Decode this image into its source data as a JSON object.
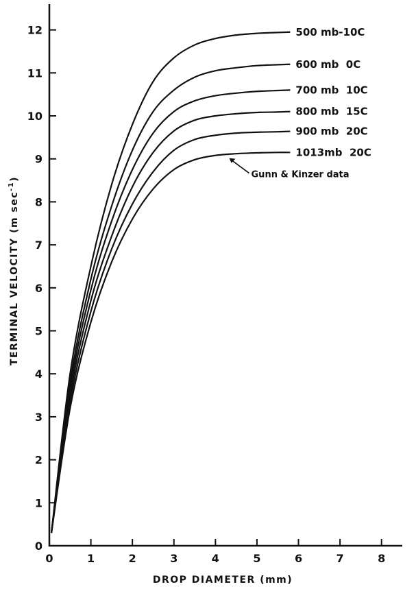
{
  "chart_data": {
    "type": "line",
    "xlabel": "DROP DIAMETER (mm)",
    "ylabel": "TERMINAL VELOCITY (m sec",
    "ylabel_superscript": "-1",
    "ylabel_suffix": ")",
    "xlim": [
      0,
      8.5
    ],
    "ylim": [
      0,
      12.6
    ],
    "xticks": [
      0,
      1,
      2,
      3,
      4,
      5,
      6,
      7,
      8
    ],
    "yticks": [
      0,
      1,
      2,
      3,
      4,
      5,
      6,
      7,
      8,
      9,
      10,
      11,
      12
    ],
    "grid": false,
    "colors": {
      "line": "#111111",
      "axis": "#111111"
    },
    "series": [
      {
        "name": "500 mb-10C",
        "x": [
          0.05,
          0.5,
          1.0,
          1.5,
          2.0,
          2.5,
          3.0,
          3.5,
          4.0,
          4.5,
          5.0,
          5.5,
          5.8
        ],
        "y": [
          0.3,
          4.0,
          6.5,
          8.4,
          9.8,
          10.8,
          11.35,
          11.65,
          11.8,
          11.88,
          11.92,
          11.94,
          11.95
        ]
      },
      {
        "name": "600 mb  0C",
        "x": [
          0.05,
          0.5,
          1.0,
          1.5,
          2.0,
          2.5,
          3.0,
          3.5,
          4.0,
          4.5,
          5.0,
          5.5,
          5.8
        ],
        "y": [
          0.3,
          3.8,
          6.2,
          7.9,
          9.2,
          10.1,
          10.6,
          10.9,
          11.05,
          11.12,
          11.17,
          11.19,
          11.2
        ]
      },
      {
        "name": "700 mb  10C",
        "x": [
          0.05,
          0.5,
          1.0,
          1.5,
          2.0,
          2.5,
          3.0,
          3.5,
          4.0,
          4.5,
          5.0,
          5.5,
          5.8
        ],
        "y": [
          0.3,
          3.65,
          5.95,
          7.55,
          8.75,
          9.6,
          10.1,
          10.35,
          10.47,
          10.53,
          10.57,
          10.59,
          10.6
        ]
      },
      {
        "name": "800 mb  15C",
        "x": [
          0.05,
          0.5,
          1.0,
          1.5,
          2.0,
          2.5,
          3.0,
          3.5,
          4.0,
          4.5,
          5.0,
          5.5,
          5.8
        ],
        "y": [
          0.3,
          3.5,
          5.7,
          7.2,
          8.35,
          9.15,
          9.65,
          9.9,
          10.0,
          10.05,
          10.08,
          10.09,
          10.1
        ]
      },
      {
        "name": "900 mb  20C",
        "x": [
          0.05,
          0.5,
          1.0,
          1.5,
          2.0,
          2.5,
          3.0,
          3.5,
          4.0,
          4.5,
          5.0,
          5.5,
          5.8
        ],
        "y": [
          0.3,
          3.35,
          5.45,
          6.9,
          7.95,
          8.7,
          9.2,
          9.45,
          9.55,
          9.6,
          9.62,
          9.63,
          9.64
        ]
      },
      {
        "name": "1013mb  20C",
        "x": [
          0.05,
          0.5,
          1.0,
          1.5,
          2.0,
          2.5,
          3.0,
          3.5,
          4.0,
          4.5,
          5.0,
          5.5,
          5.8
        ],
        "y": [
          0.3,
          3.2,
          5.2,
          6.6,
          7.6,
          8.3,
          8.75,
          8.98,
          9.08,
          9.12,
          9.14,
          9.15,
          9.15
        ]
      }
    ],
    "annotations": [
      {
        "text": "Gunn & Kinzer data",
        "points_to": {
          "series": "1013mb  20C",
          "x": 4.3,
          "y": 9.05
        }
      }
    ]
  }
}
